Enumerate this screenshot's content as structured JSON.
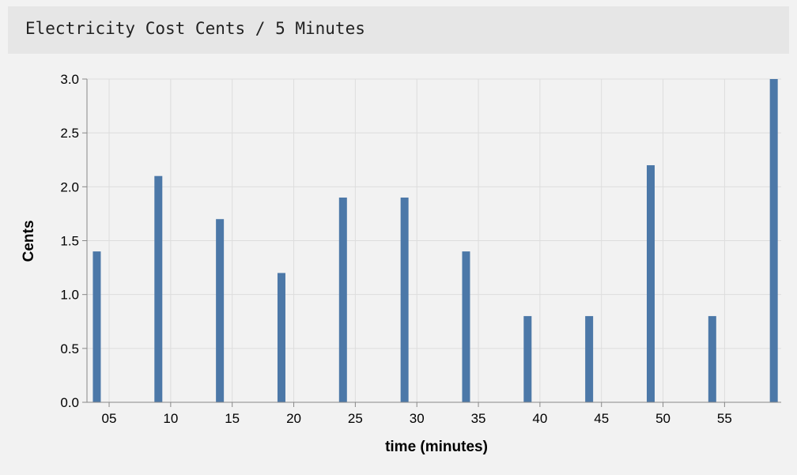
{
  "panel": {
    "title": "Electricity Cost Cents / 5 Minutes"
  },
  "colors": {
    "bar": "#4c78a8",
    "grid": "#dddddd",
    "axis": "#888888",
    "text": "#000000"
  },
  "chart_data": {
    "type": "bar",
    "xlabel": "time (minutes)",
    "ylabel": "Cents",
    "x": [
      4,
      9,
      14,
      19,
      24,
      29,
      34,
      39,
      44,
      49,
      54,
      59
    ],
    "values": [
      1.4,
      2.1,
      1.7,
      1.2,
      1.9,
      1.9,
      1.4,
      0.8,
      0.8,
      2.2,
      0.8,
      3.0
    ],
    "xlim": [
      3.2,
      59.6
    ],
    "ylim": [
      0,
      3.0
    ],
    "x_ticks": [
      5,
      10,
      15,
      20,
      25,
      30,
      35,
      40,
      45,
      50,
      55
    ],
    "x_tick_labels": [
      "05",
      "10",
      "15",
      "20",
      "25",
      "30",
      "35",
      "40",
      "45",
      "50",
      "55"
    ],
    "y_ticks": [
      0,
      0.5,
      1.0,
      1.5,
      2.0,
      2.5,
      3.0
    ],
    "y_tick_labels": [
      "0.0",
      "0.5",
      "1.0",
      "1.5",
      "2.0",
      "2.5",
      "3.0"
    ],
    "grid": true,
    "legend": "none"
  }
}
